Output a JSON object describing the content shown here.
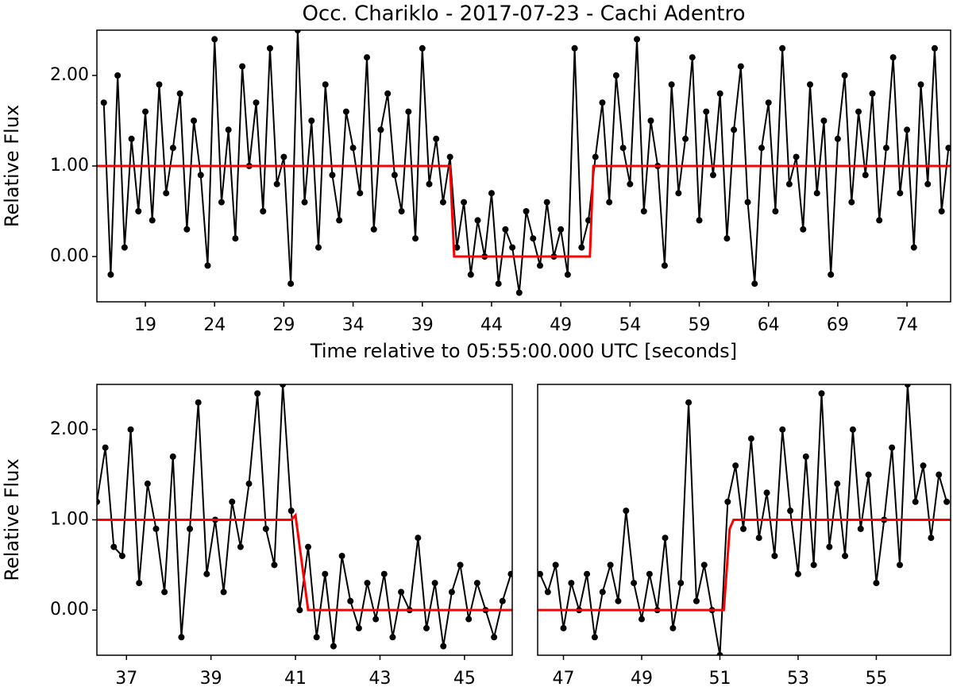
{
  "chart_data": [
    {
      "type": "line",
      "title": "Occ. Chariklo - 2017-07-23 - Cachi Adentro",
      "xlabel": "Time relative to 05:55:00.000 UTC [seconds]",
      "ylabel": "Relative Flux",
      "xlim": [
        15.5,
        77.15
      ],
      "ylim": [
        -0.5,
        2.5
      ],
      "xticks": [
        19,
        24,
        29,
        34,
        39,
        44,
        49,
        54,
        59,
        64,
        69,
        74
      ],
      "yticks": [
        {
          "value": 0,
          "label": "0.00"
        },
        {
          "value": 1,
          "label": "1.00"
        },
        {
          "value": 2,
          "label": "2.00"
        }
      ],
      "series": [
        {
          "color": "#000000",
          "markers": true,
          "x": [
            16,
            16.5,
            17,
            17.5,
            18,
            18.5,
            19,
            19.5,
            20,
            20.5,
            21,
            21.5,
            22,
            22.5,
            23,
            23.5,
            24,
            24.5,
            25,
            25.5,
            26,
            26.5,
            27,
            27.5,
            28,
            28.5,
            29,
            29.5,
            30,
            30.5,
            31,
            31.5,
            32,
            32.5,
            33,
            33.5,
            34,
            34.5,
            35,
            35.5,
            36,
            36.5,
            37,
            37.5,
            38,
            38.5,
            39,
            39.5,
            40,
            40.5,
            41,
            41.5,
            42,
            42.5,
            43,
            43.5,
            44,
            44.5,
            45,
            45.5,
            46,
            46.5,
            47,
            47.5,
            48,
            48.5,
            49,
            49.5,
            50,
            50.5,
            51,
            51.5,
            52,
            52.5,
            53,
            53.5,
            54,
            54.5,
            55,
            55.5,
            56,
            56.5,
            57,
            57.5,
            58,
            58.5,
            59,
            59.5,
            60,
            60.5,
            61,
            61.5,
            62,
            62.5,
            63,
            63.5,
            64,
            64.5,
            65,
            65.5,
            66,
            66.5,
            67,
            67.5,
            68,
            68.5,
            69,
            69.5,
            70,
            70.5,
            71,
            71.5,
            72,
            72.5,
            73,
            73.5,
            74,
            74.5,
            75,
            75.5,
            76,
            76.5,
            77
          ],
          "values": [
            1.7,
            -0.2,
            2.0,
            0.1,
            1.3,
            0.5,
            1.6,
            0.4,
            1.9,
            0.7,
            1.2,
            1.8,
            0.3,
            1.5,
            0.9,
            -0.1,
            2.4,
            0.6,
            1.4,
            0.2,
            2.1,
            1.0,
            1.7,
            0.5,
            2.3,
            0.8,
            1.1,
            -0.3,
            2.5,
            0.6,
            1.5,
            0.1,
            1.9,
            0.9,
            0.4,
            1.6,
            1.2,
            0.7,
            2.2,
            0.3,
            1.4,
            1.8,
            0.9,
            0.5,
            1.6,
            0.2,
            2.3,
            0.8,
            1.3,
            0.6,
            1.1,
            0.1,
            0.6,
            -0.2,
            0.4,
            0.0,
            0.7,
            -0.3,
            0.3,
            0.1,
            -0.4,
            0.5,
            0.2,
            -0.1,
            0.6,
            0.0,
            0.3,
            -0.2,
            2.3,
            0.1,
            0.4,
            1.1,
            1.7,
            0.6,
            2.0,
            1.2,
            0.8,
            2.4,
            0.5,
            1.5,
            1.0,
            -0.1,
            1.9,
            0.7,
            1.3,
            2.2,
            0.4,
            1.6,
            0.9,
            1.8,
            0.2,
            1.4,
            2.1,
            0.6,
            -0.3,
            1.2,
            1.7,
            0.5,
            2.3,
            0.8,
            1.1,
            0.3,
            1.9,
            0.7,
            1.5,
            -0.2,
            1.3,
            2.0,
            0.6,
            1.6,
            0.9,
            1.8,
            0.4,
            1.2,
            2.2,
            0.7,
            1.4,
            0.1,
            1.9,
            0.8,
            2.3,
            0.5,
            1.2
          ]
        },
        {
          "color": "#ff0000",
          "markers": false,
          "x": [
            15.5,
            41.0,
            41.3,
            51.1,
            51.35,
            77.15
          ],
          "values": [
            1,
            1,
            0,
            0,
            1,
            1
          ]
        }
      ]
    },
    {
      "type": "line",
      "ylabel": "Relative Flux",
      "xlim": [
        36.3,
        46.13
      ],
      "ylim": [
        -0.5,
        2.5
      ],
      "xticks": [
        37,
        39,
        41,
        43,
        45
      ],
      "yticks": [
        {
          "value": 0,
          "label": "0.00"
        },
        {
          "value": 1,
          "label": "1.00"
        },
        {
          "value": 2,
          "label": "2.00"
        }
      ],
      "series": [
        {
          "color": "#000000",
          "markers": true,
          "x": [
            36.3,
            36.5,
            36.7,
            36.9,
            37.1,
            37.3,
            37.5,
            37.7,
            37.9,
            38.1,
            38.3,
            38.5,
            38.7,
            38.9,
            39.1,
            39.3,
            39.5,
            39.7,
            39.9,
            40.1,
            40.3,
            40.5,
            40.7,
            40.9,
            41.1,
            41.3,
            41.5,
            41.7,
            41.9,
            42.1,
            42.3,
            42.5,
            42.7,
            42.9,
            43.1,
            43.3,
            43.5,
            43.7,
            43.9,
            44.1,
            44.3,
            44.5,
            44.7,
            44.9,
            45.1,
            45.3,
            45.5,
            45.7,
            45.9,
            46.1
          ],
          "values": [
            1.2,
            1.8,
            0.7,
            0.6,
            2.0,
            0.3,
            1.4,
            0.9,
            0.2,
            1.7,
            -0.3,
            0.9,
            2.3,
            0.4,
            1.0,
            0.2,
            1.2,
            0.7,
            1.4,
            2.4,
            0.9,
            0.5,
            2.5,
            1.1,
            0.0,
            0.7,
            -0.3,
            0.4,
            -0.4,
            0.6,
            0.1,
            -0.2,
            0.3,
            -0.1,
            0.4,
            -0.3,
            0.2,
            0.0,
            0.8,
            -0.2,
            0.3,
            -0.4,
            0.2,
            0.5,
            -0.1,
            0.3,
            0.0,
            -0.3,
            0.1,
            0.4
          ]
        },
        {
          "color": "#ff0000",
          "markers": false,
          "x": [
            36.3,
            40.9,
            41.0,
            41.3,
            46.13
          ],
          "values": [
            1,
            1,
            1.05,
            0,
            0
          ]
        }
      ]
    },
    {
      "type": "line",
      "xlim": [
        46.34,
        56.9
      ],
      "ylim": [
        -0.5,
        2.5
      ],
      "xticks": [
        47,
        49,
        51,
        53,
        55
      ],
      "series": [
        {
          "color": "#000000",
          "markers": true,
          "x": [
            46.4,
            46.6,
            46.8,
            47.0,
            47.2,
            47.4,
            47.6,
            47.8,
            48.0,
            48.2,
            48.4,
            48.6,
            48.8,
            49.0,
            49.2,
            49.4,
            49.6,
            49.8,
            50.0,
            50.2,
            50.4,
            50.6,
            50.8,
            51.0,
            51.2,
            51.4,
            51.6,
            51.8,
            52.0,
            52.2,
            52.4,
            52.6,
            52.8,
            53.0,
            53.2,
            53.4,
            53.6,
            53.8,
            54.0,
            54.2,
            54.4,
            54.6,
            54.8,
            55.0,
            55.2,
            55.4,
            55.6,
            55.8,
            56.0,
            56.2,
            56.4,
            56.6,
            56.8
          ],
          "values": [
            0.4,
            0.2,
            0.5,
            -0.2,
            0.3,
            0.0,
            0.4,
            -0.3,
            0.2,
            0.5,
            0.1,
            1.1,
            0.3,
            -0.1,
            0.4,
            0.0,
            0.8,
            -0.2,
            0.3,
            2.3,
            0.1,
            0.5,
            0.0,
            -0.5,
            1.2,
            1.6,
            0.9,
            1.9,
            0.8,
            1.3,
            0.6,
            2.0,
            1.1,
            0.4,
            1.7,
            0.5,
            2.4,
            0.7,
            1.4,
            0.6,
            2.0,
            0.9,
            1.5,
            0.3,
            1.0,
            1.8,
            0.5,
            2.5,
            1.2,
            1.6,
            0.8,
            1.5,
            1.2
          ]
        },
        {
          "color": "#ff0000",
          "markers": false,
          "x": [
            46.34,
            51.1,
            51.25,
            51.35,
            56.9
          ],
          "values": [
            0,
            0,
            0.9,
            1,
            1
          ]
        }
      ]
    }
  ]
}
